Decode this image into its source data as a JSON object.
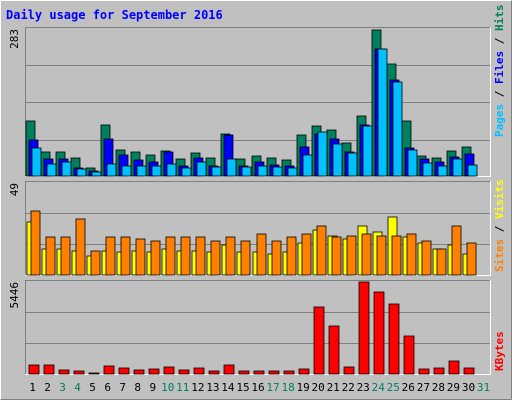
{
  "title": "Daily usage for September 2016",
  "colors": {
    "frame_bg": "#C0C0C0",
    "plot_bg": "#C0C0C0",
    "title": "#0000FF",
    "hits": "#00805C",
    "files": "#0000FF",
    "pages": "#00C0FF",
    "visits": "#FFFF00",
    "sites": "#FF8000",
    "kbytes": "#FF0000",
    "weekday_label": "#000000",
    "weekend_label": "#00805C"
  },
  "chart_data": [
    {
      "type": "bar",
      "panel": "top",
      "ymax_label": "283",
      "right_label": [
        "Pages",
        "Files",
        "Hits"
      ],
      "ylim": [
        0,
        283
      ],
      "categories": [
        "1",
        "2",
        "3",
        "4",
        "5",
        "6",
        "7",
        "8",
        "9",
        "10",
        "11",
        "12",
        "13",
        "14",
        "15",
        "16",
        "17",
        "18",
        "19",
        "20",
        "21",
        "22",
        "23",
        "24",
        "25",
        "26",
        "27",
        "28",
        "29",
        "30",
        "31"
      ],
      "series": [
        {
          "name": "Hits",
          "values": [
            106,
            47,
            47,
            34,
            15,
            99,
            51,
            47,
            40,
            49,
            33,
            45,
            35,
            80,
            33,
            38,
            34,
            31,
            79,
            97,
            89,
            63,
            116,
            281,
            215,
            105,
            39,
            34,
            48,
            55,
            0
          ]
        },
        {
          "name": "Files",
          "values": [
            70,
            33,
            33,
            15,
            10,
            72,
            40,
            30,
            26,
            46,
            19,
            35,
            20,
            79,
            19,
            26,
            22,
            20,
            55,
            80,
            72,
            47,
            98,
            245,
            185,
            53,
            33,
            27,
            36,
            42,
            0
          ]
        },
        {
          "name": "Pages",
          "values": [
            53,
            23,
            26,
            14,
            8,
            23,
            20,
            20,
            20,
            23,
            16,
            27,
            17,
            33,
            17,
            19,
            17,
            16,
            41,
            84,
            62,
            45,
            97,
            245,
            181,
            50,
            25,
            20,
            32,
            21,
            0
          ]
        }
      ]
    },
    {
      "type": "bar",
      "panel": "middle",
      "ymax_label": "49",
      "right_label": [
        "Sites",
        "Visits"
      ],
      "ylim": [
        0,
        49
      ],
      "categories": [
        "1",
        "2",
        "3",
        "4",
        "5",
        "6",
        "7",
        "8",
        "9",
        "10",
        "11",
        "12",
        "13",
        "14",
        "15",
        "16",
        "17",
        "18",
        "19",
        "20",
        "21",
        "22",
        "23",
        "24",
        "25",
        "26",
        "27",
        "28",
        "29",
        "30",
        "31"
      ],
      "series": [
        {
          "name": "Visits",
          "values": [
            28,
            14,
            14,
            13,
            10,
            13,
            12,
            13,
            12,
            14,
            13,
            13,
            12,
            16,
            12,
            12,
            11,
            12,
            17,
            24,
            21,
            19,
            26,
            23,
            31,
            20,
            17,
            14,
            16,
            11,
            0
          ]
        },
        {
          "name": "Sites",
          "values": [
            34,
            20,
            20,
            30,
            13,
            20,
            20,
            19,
            18,
            20,
            20,
            20,
            18,
            20,
            18,
            22,
            18,
            20,
            22,
            26,
            20,
            21,
            22,
            21,
            21,
            22,
            18,
            14,
            26,
            17,
            0
          ]
        }
      ]
    },
    {
      "type": "bar",
      "panel": "bottom",
      "ymax_label": "5446",
      "right_label": [
        "KBytes"
      ],
      "ylim": [
        0,
        5446
      ],
      "categories": [
        "1",
        "2",
        "3",
        "4",
        "5",
        "6",
        "7",
        "8",
        "9",
        "10",
        "11",
        "12",
        "13",
        "14",
        "15",
        "16",
        "17",
        "18",
        "19",
        "20",
        "21",
        "22",
        "23",
        "24",
        "25",
        "26",
        "27",
        "28",
        "29",
        "30",
        "31"
      ],
      "series": [
        {
          "name": "KBytes",
          "values": [
            560,
            560,
            230,
            150,
            80,
            470,
            350,
            260,
            270,
            400,
            220,
            370,
            170,
            550,
            160,
            190,
            180,
            190,
            300,
            3970,
            2860,
            390,
            5430,
            4860,
            4130,
            2260,
            300,
            380,
            750,
            360,
            0
          ]
        }
      ]
    }
  ],
  "x_labels": [
    {
      "text": "1",
      "weekend": false
    },
    {
      "text": "2",
      "weekend": false
    },
    {
      "text": "3",
      "weekend": true
    },
    {
      "text": "4",
      "weekend": true
    },
    {
      "text": "5",
      "weekend": false
    },
    {
      "text": "6",
      "weekend": false
    },
    {
      "text": "7",
      "weekend": false
    },
    {
      "text": "8",
      "weekend": false
    },
    {
      "text": "9",
      "weekend": false
    },
    {
      "text": "10",
      "weekend": true
    },
    {
      "text": "11",
      "weekend": true
    },
    {
      "text": "12",
      "weekend": false
    },
    {
      "text": "13",
      "weekend": false
    },
    {
      "text": "14",
      "weekend": false
    },
    {
      "text": "15",
      "weekend": false
    },
    {
      "text": "16",
      "weekend": false
    },
    {
      "text": "17",
      "weekend": true
    },
    {
      "text": "18",
      "weekend": true
    },
    {
      "text": "19",
      "weekend": false
    },
    {
      "text": "20",
      "weekend": false
    },
    {
      "text": "21",
      "weekend": false
    },
    {
      "text": "22",
      "weekend": false
    },
    {
      "text": "23",
      "weekend": false
    },
    {
      "text": "24",
      "weekend": true
    },
    {
      "text": "25",
      "weekend": true
    },
    {
      "text": "26",
      "weekend": false
    },
    {
      "text": "27",
      "weekend": false
    },
    {
      "text": "28",
      "weekend": false
    },
    {
      "text": "29",
      "weekend": false
    },
    {
      "text": "30",
      "weekend": false
    },
    {
      "text": "31",
      "weekend": true
    }
  ]
}
